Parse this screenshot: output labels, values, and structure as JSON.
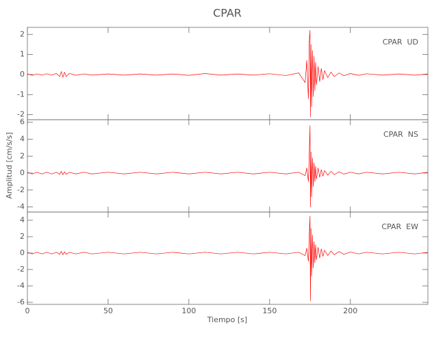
{
  "chart_data": [
    {
      "type": "line",
      "title": "CPAR",
      "annotation": "CPAR  UD",
      "color": "#ff0000",
      "xlim": [
        0,
        248
      ],
      "ylim": [
        -2.25,
        2.35
      ],
      "yticks": [
        -2,
        -1,
        0,
        1,
        2
      ],
      "x": [
        0,
        3,
        6,
        9,
        12,
        15,
        18,
        20,
        21,
        22,
        23,
        24,
        26,
        30,
        35,
        40,
        50,
        60,
        70,
        80,
        90,
        100,
        110,
        120,
        130,
        140,
        150,
        160,
        168,
        172,
        173,
        174,
        174.5,
        175,
        175.3,
        175.6,
        176,
        176.5,
        177,
        177.5,
        178,
        178.5,
        179,
        180,
        181,
        182,
        183,
        184,
        186,
        188,
        190,
        193,
        196,
        200,
        205,
        210,
        220,
        230,
        240,
        248
      ],
      "values": [
        0.03,
        -0.04,
        0.03,
        -0.03,
        0.04,
        -0.03,
        0.05,
        -0.1,
        0.15,
        -0.14,
        0.12,
        -0.1,
        0.06,
        -0.04,
        0.03,
        -0.03,
        0.03,
        -0.03,
        0.03,
        -0.03,
        0.03,
        -0.04,
        0.05,
        -0.03,
        0.03,
        -0.03,
        0.04,
        -0.05,
        0.08,
        -0.4,
        0.7,
        -1.2,
        1.6,
        2.2,
        -2.1,
        1.5,
        -1.6,
        1.2,
        -1.1,
        0.9,
        -0.8,
        0.6,
        -0.5,
        0.4,
        -0.35,
        0.3,
        -0.25,
        0.2,
        -0.15,
        0.12,
        -0.1,
        0.08,
        -0.06,
        0.05,
        -0.04,
        0.04,
        -0.03,
        0.03,
        -0.03,
        0.03
      ]
    },
    {
      "type": "line",
      "ylabel": "Amplitud [cm/s/s]",
      "annotation": "CPAR  NS",
      "color": "#ff0000",
      "xlim": [
        0,
        248
      ],
      "ylim": [
        -4.6,
        6.3
      ],
      "yticks": [
        -4,
        -2,
        0,
        2,
        4,
        6
      ],
      "x": [
        0,
        3,
        6,
        9,
        12,
        15,
        18,
        20,
        21,
        22,
        23,
        24,
        26,
        30,
        35,
        40,
        50,
        60,
        70,
        80,
        90,
        100,
        110,
        120,
        130,
        140,
        150,
        160,
        168,
        172,
        173,
        174,
        174.5,
        175,
        175.3,
        175.6,
        176,
        176.5,
        177,
        177.5,
        178,
        178.5,
        179,
        180,
        181,
        182,
        183,
        184,
        186,
        188,
        190,
        193,
        196,
        200,
        205,
        210,
        220,
        230,
        240,
        248
      ],
      "values": [
        0.1,
        -0.1,
        0.1,
        -0.1,
        0.1,
        -0.1,
        0.1,
        -0.15,
        0.2,
        -0.2,
        0.15,
        -0.15,
        0.1,
        -0.1,
        0.1,
        -0.1,
        0.1,
        -0.1,
        0.1,
        -0.1,
        0.1,
        -0.1,
        0.1,
        -0.1,
        0.1,
        -0.1,
        0.1,
        -0.1,
        0.1,
        -0.3,
        0.6,
        -1.0,
        2.0,
        5.6,
        -4.0,
        2.5,
        -2.8,
        1.8,
        -1.6,
        1.2,
        -1.0,
        0.8,
        -0.7,
        0.6,
        -0.5,
        0.4,
        -0.35,
        0.3,
        -0.25,
        0.2,
        -0.18,
        0.15,
        -0.12,
        0.1,
        -0.1,
        0.1,
        -0.1,
        0.1,
        -0.1,
        0.1
      ]
    },
    {
      "type": "line",
      "annotation": "CPAR  EW",
      "color": "#ff0000",
      "xlabel": "Tiempo [s]",
      "xlim": [
        0,
        248
      ],
      "xticks": [
        0,
        50,
        100,
        150,
        200
      ],
      "ylim": [
        -6.25,
        5.0
      ],
      "yticks": [
        -6,
        -4,
        -2,
        0,
        2,
        4
      ],
      "x": [
        0,
        3,
        6,
        9,
        12,
        15,
        18,
        20,
        21,
        22,
        23,
        24,
        26,
        30,
        35,
        40,
        50,
        60,
        70,
        80,
        90,
        100,
        110,
        120,
        130,
        140,
        150,
        160,
        168,
        172,
        173,
        174,
        174.5,
        175,
        175.3,
        175.6,
        176,
        176.5,
        177,
        177.5,
        178,
        178.5,
        179,
        180,
        181,
        182,
        183,
        184,
        186,
        188,
        190,
        193,
        196,
        200,
        205,
        210,
        220,
        230,
        240,
        248
      ],
      "values": [
        0.1,
        -0.1,
        0.1,
        -0.1,
        0.1,
        -0.1,
        0.1,
        -0.15,
        0.2,
        -0.2,
        0.15,
        -0.15,
        0.1,
        -0.1,
        0.1,
        -0.1,
        0.1,
        -0.1,
        0.1,
        -0.1,
        0.1,
        -0.1,
        0.1,
        -0.1,
        0.1,
        -0.1,
        0.1,
        -0.1,
        0.1,
        -0.3,
        0.6,
        -1.0,
        2.0,
        4.5,
        -5.8,
        3.0,
        -2.8,
        2.2,
        -1.8,
        1.4,
        -1.2,
        1.0,
        -0.8,
        0.7,
        -0.6,
        0.5,
        -0.4,
        0.35,
        -0.3,
        0.25,
        -0.2,
        0.18,
        -0.15,
        0.12,
        -0.1,
        0.1,
        -0.1,
        0.1,
        -0.1,
        0.1
      ]
    }
  ]
}
